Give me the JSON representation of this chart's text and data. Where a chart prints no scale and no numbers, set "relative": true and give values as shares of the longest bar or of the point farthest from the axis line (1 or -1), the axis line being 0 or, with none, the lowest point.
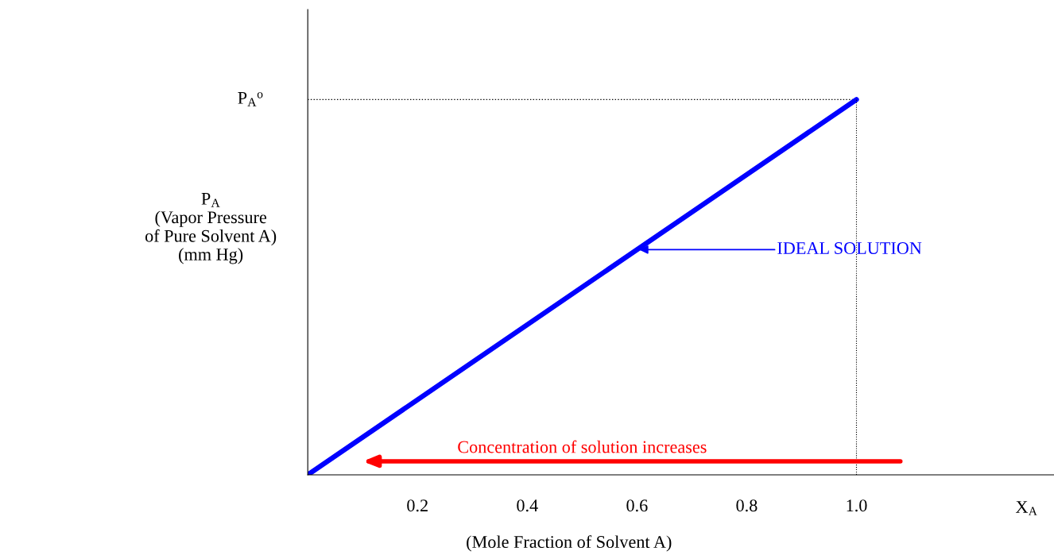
{
  "chart_data": {
    "type": "line",
    "relative": true,
    "xlabel": "(Mole Fraction of Solvent A)",
    "ylabel": "P$_{A}$\n(Vapor Pressure\nof Pure Solvent A)\n(mm Hg)",
    "x": [
      0,
      1.0
    ],
    "series": [
      {
        "color": "#0000ff",
        "values": [
          0,
          1
        ]
      }
    ],
    "xlim": [
      0,
      1.36
    ],
    "xticks": [
      {
        "value": 0.2,
        "label": "0.2"
      },
      {
        "value": 0.4,
        "label": "0.4"
      },
      {
        "value": 0.6,
        "label": "0.6"
      },
      {
        "value": 0.8,
        "label": "0.8"
      },
      {
        "value": 1.0,
        "label": "1.0"
      }
    ],
    "ref_lines": [
      {
        "axis": "y",
        "value": 1,
        "label": "P$_{A}$$^{o}$",
        "color": "#000000",
        "line_style": "dotted"
      },
      {
        "axis": "x",
        "value": 1.0,
        "color": "#000000",
        "line_style": "dotted"
      }
    ],
    "annotations": [
      {
        "text": "IDEAL SOLUTION",
        "x": 0.6,
        "y": 0.6
      },
      "Concentration of solution increases",
      "X$_{A}$"
    ],
    "grid": false,
    "legend": false,
    "marker": "none",
    "line_style": "solid"
  }
}
